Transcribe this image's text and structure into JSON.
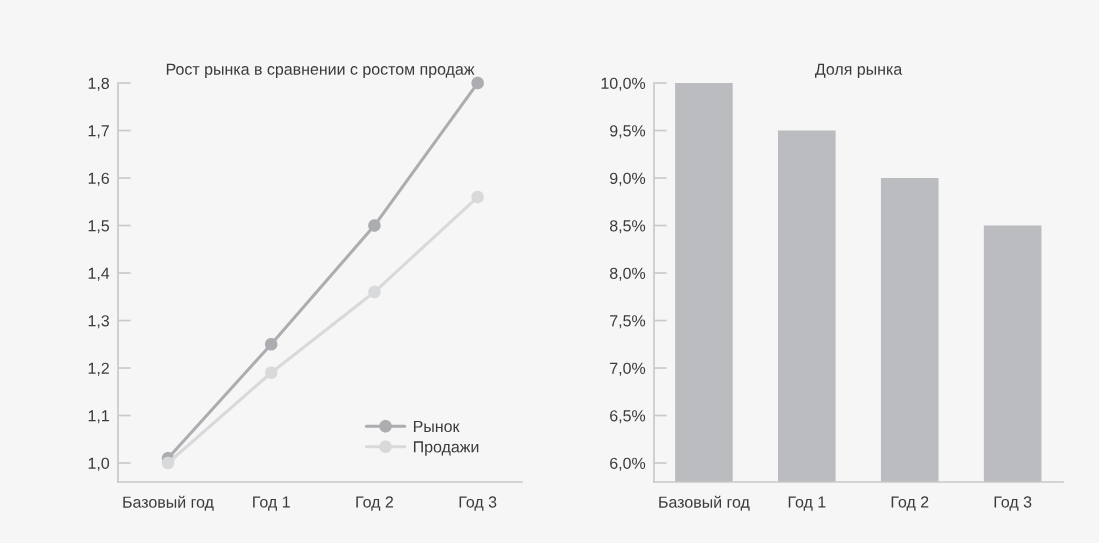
{
  "chart_data": [
    {
      "type": "line",
      "title": "Рост рынка в сравнении с ростом продаж",
      "categories": [
        "Базовый год",
        "Год 1",
        "Год 2",
        "Год 3"
      ],
      "series": [
        {
          "name": "Рынок",
          "color": "#acadb1",
          "values": [
            1.01,
            1.25,
            1.5,
            1.8
          ]
        },
        {
          "name": "Продажи",
          "color": "#d8d9db",
          "values": [
            1.0,
            1.19,
            1.36,
            1.56
          ]
        }
      ],
      "ylim": [
        0.96,
        1.8
      ],
      "yticks": [
        {
          "value": 1.0,
          "label": "1,0"
        },
        {
          "value": 1.1,
          "label": "1,1"
        },
        {
          "value": 1.2,
          "label": "1,2"
        },
        {
          "value": 1.3,
          "label": "1,3"
        },
        {
          "value": 1.4,
          "label": "1,4"
        },
        {
          "value": 1.5,
          "label": "1,5"
        },
        {
          "value": 1.6,
          "label": "1,6"
        },
        {
          "value": 1.7,
          "label": "1,7"
        },
        {
          "value": 1.8,
          "label": "1,8"
        }
      ],
      "marker": "circle",
      "legend": "bottom right",
      "grid": false
    },
    {
      "type": "bar",
      "title": "Доля рынка",
      "categories": [
        "Базовый год",
        "Год 1",
        "Год 2",
        "Год 3"
      ],
      "values": [
        10.0,
        9.5,
        9.0,
        8.5
      ],
      "color": "#bbbcc0",
      "ylim": [
        5.8,
        10.0
      ],
      "yticks": [
        {
          "value": 6.0,
          "label": "6,0%"
        },
        {
          "value": 6.5,
          "label": "6,5%"
        },
        {
          "value": 7.0,
          "label": "7,0%"
        },
        {
          "value": 7.5,
          "label": "7,5%"
        },
        {
          "value": 8.0,
          "label": "8,0%"
        },
        {
          "value": 8.5,
          "label": "8,5%"
        },
        {
          "value": 9.0,
          "label": "9,0%"
        },
        {
          "value": 9.5,
          "label": "9,5%"
        },
        {
          "value": 10.0,
          "label": "10,0%"
        }
      ],
      "grid": false
    }
  ]
}
